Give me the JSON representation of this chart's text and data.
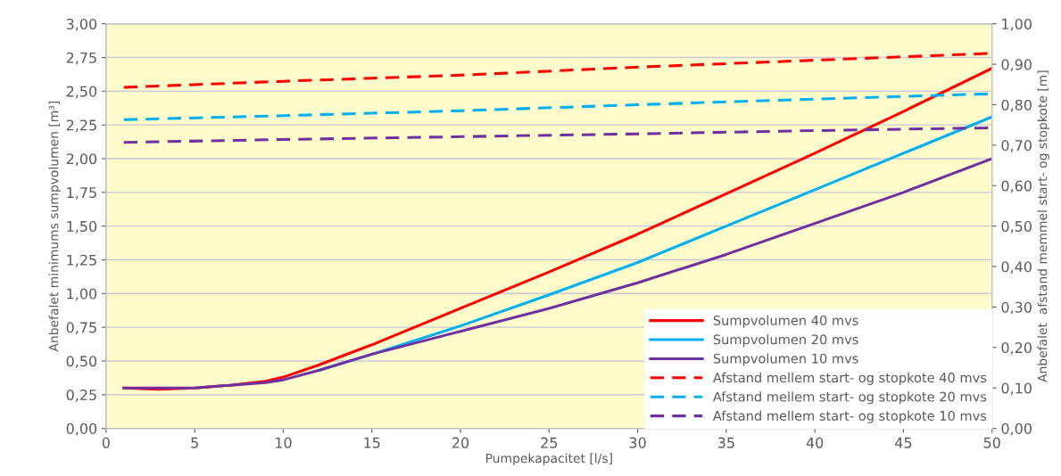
{
  "chart_data": {
    "type": "line",
    "xlabel": "Pumpekapacitet [l/s]",
    "ylabel": "Anbefalet minimums sumpvolumen [m³]",
    "y2label": "Anbefalet  afstand memmel start- og stopkote [m]",
    "x": [
      1,
      3,
      5,
      7,
      9,
      10,
      12,
      15,
      20,
      25,
      30,
      35,
      40,
      45,
      50
    ],
    "series": [
      {
        "name": "Sumpvolumen 40 mvs",
        "color": "#ff0000",
        "line_style": "solid",
        "values": [
          0.3,
          0.29,
          0.3,
          0.32,
          0.35,
          0.38,
          0.47,
          0.62,
          0.89,
          1.16,
          1.44,
          1.74,
          2.04,
          2.35,
          2.67
        ]
      },
      {
        "name": "Sumpvolumen 20 mvs",
        "color": "#00b0f0",
        "line_style": "solid",
        "values": [
          null,
          null,
          null,
          null,
          null,
          null,
          0.43,
          0.55,
          0.76,
          0.99,
          1.23,
          1.5,
          1.77,
          2.04,
          2.31
        ]
      },
      {
        "name": "Sumpvolumen 10 mvs",
        "color": "#7030a0",
        "line_style": "solid",
        "values": [
          0.3,
          0.3,
          0.3,
          0.32,
          0.34,
          0.36,
          0.43,
          0.55,
          0.72,
          0.89,
          1.08,
          1.29,
          1.52,
          1.75,
          2.0
        ]
      },
      {
        "name": "Afstand mellem start- og stopkote 40 mvs",
        "color": "#ff0000",
        "line_style": "dashed",
        "axis": "y2",
        "x": [
          1,
          10,
          20,
          30,
          40,
          50
        ],
        "values": [
          0.843,
          0.858,
          0.873,
          0.893,
          0.91,
          0.927
        ]
      },
      {
        "name": "Afstand mellem start- og stopkote 20 mvs",
        "color": "#00b0f0",
        "line_style": "dashed",
        "axis": "y2",
        "x": [
          1,
          10,
          20,
          30,
          40,
          50
        ],
        "values": [
          0.763,
          0.773,
          0.785,
          0.8,
          0.814,
          0.827
        ]
      },
      {
        "name": "Afstand mellem start- og stopkote 10 mvs",
        "color": "#7030a0",
        "line_style": "dashed",
        "axis": "y2",
        "x": [
          1,
          10,
          20,
          30,
          40,
          50
        ],
        "values": [
          0.707,
          0.714,
          0.721,
          0.728,
          0.736,
          0.743
        ]
      }
    ],
    "xlim": [
      0,
      50
    ],
    "xticks": [
      0,
      5,
      10,
      15,
      20,
      25,
      30,
      35,
      40,
      45,
      50
    ],
    "ylim": [
      0,
      3
    ],
    "yticks": [
      {
        "value": 0,
        "label": "0,00"
      },
      {
        "value": 0.25,
        "label": "0,25"
      },
      {
        "value": 0.5,
        "label": "0,50"
      },
      {
        "value": 0.75,
        "label": "0,75"
      },
      {
        "value": 1,
        "label": "1,00"
      },
      {
        "value": 1.25,
        "label": "1,25"
      },
      {
        "value": 1.5,
        "label": "1,50"
      },
      {
        "value": 1.75,
        "label": "1,75"
      },
      {
        "value": 2,
        "label": "2,00"
      },
      {
        "value": 2.25,
        "label": "2,25"
      },
      {
        "value": 2.5,
        "label": "2,50"
      },
      {
        "value": 2.75,
        "label": "2,75"
      },
      {
        "value": 3,
        "label": "3,00"
      }
    ],
    "y2lim": [
      0,
      1
    ],
    "y2ticks": [
      {
        "value": 0,
        "label": "0,00"
      },
      {
        "value": 0.1,
        "label": "0,10"
      },
      {
        "value": 0.2,
        "label": "0,20"
      },
      {
        "value": 0.3,
        "label": "0,30"
      },
      {
        "value": 0.4,
        "label": "0,40"
      },
      {
        "value": 0.5,
        "label": "0,50"
      },
      {
        "value": 0.6,
        "label": "0,60"
      },
      {
        "value": 0.7,
        "label": "0,70"
      },
      {
        "value": 0.8,
        "label": "0,80"
      },
      {
        "value": 0.9,
        "label": "0,90"
      },
      {
        "value": 1,
        "label": "1,00"
      }
    ],
    "grid": "y",
    "legend": "bottom right",
    "marker": "none"
  }
}
